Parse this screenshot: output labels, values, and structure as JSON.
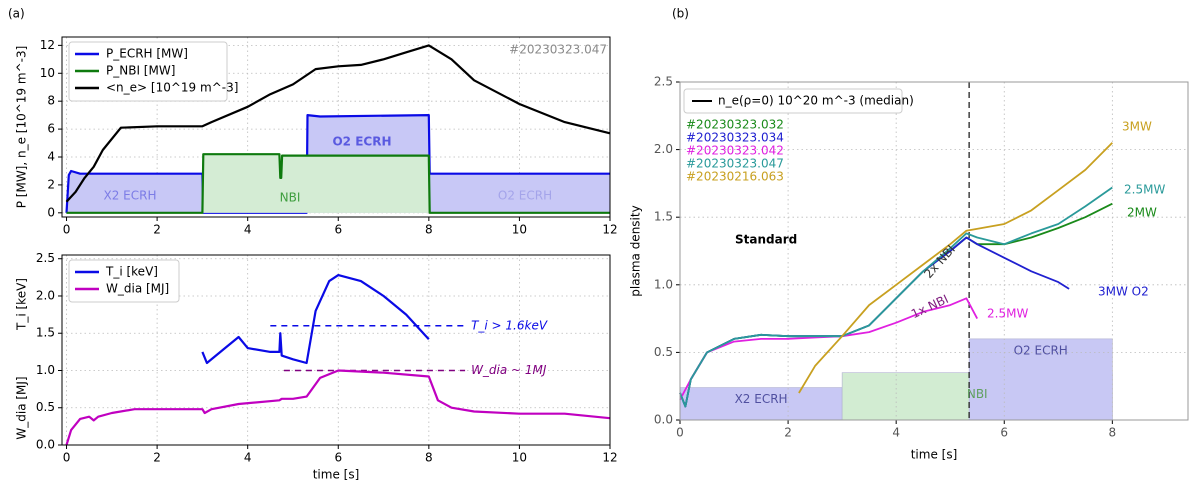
{
  "chart_data": [
    {
      "type": "line",
      "panel": "(a)",
      "ylabel": "P [MW],  n_e [10^19 m^-3]",
      "xlim": [
        -0.1,
        12
      ],
      "ylim": [
        -0.3,
        12.6
      ],
      "xticks": [
        0,
        2,
        4,
        6,
        8,
        10,
        12
      ],
      "yticks": [
        0,
        2,
        4,
        6,
        8,
        10,
        12
      ],
      "grid": true,
      "legend": "upper left",
      "series": [
        {
          "name": "P_ECRH [MW]",
          "color": "#0a0ae6",
          "fill": "#c8c8f6",
          "x": [
            0,
            0.05,
            0.1,
            0.3,
            3,
            3.02,
            5.3,
            5.32,
            5.6,
            8,
            8.02,
            12
          ],
          "values": [
            0,
            2.7,
            3,
            2.8,
            2.8,
            0,
            0,
            7,
            6.9,
            7,
            2.8,
            2.8
          ]
        },
        {
          "name": "P_NBI [MW]",
          "color": "#0e7a0e",
          "fill": "#d4ecd4",
          "x": [
            0,
            3,
            3.02,
            4.7,
            4.72,
            4.74,
            4.76,
            8,
            8.02,
            12
          ],
          "values": [
            0,
            0,
            4.2,
            4.2,
            2.5,
            2.5,
            4.1,
            4.1,
            0,
            0
          ]
        },
        {
          "name": "<n_e> [10^19 m^-3]",
          "color": "#000000",
          "x": [
            0,
            0.2,
            0.4,
            0.6,
            0.8,
            1.2,
            2,
            3,
            3.2,
            4,
            4.5,
            5,
            5.5,
            6,
            6.5,
            7,
            7.5,
            8,
            8.5,
            9,
            10,
            11,
            12
          ],
          "values": [
            0.8,
            1.5,
            2.5,
            3.3,
            4.5,
            6.1,
            6.2,
            6.2,
            6.5,
            7.6,
            8.5,
            9.2,
            10.3,
            10.5,
            10.6,
            11,
            11.5,
            12,
            11,
            9.5,
            7.8,
            6.5,
            5.7
          ]
        }
      ],
      "annotations": [
        {
          "text": "#20230323.047",
          "color": "#8a8a8a"
        },
        {
          "text": "X2 ECRH",
          "color": "#7c7ce6"
        },
        {
          "text": "NBI",
          "color": "#3e9e3e"
        },
        {
          "text": "O2 ECRH",
          "color": "#5a5ae0"
        },
        {
          "text": "O2 ECRH",
          "color": "#a4a4ea"
        }
      ]
    },
    {
      "type": "line",
      "xlabel": "time [s]",
      "ylabels": [
        "T_i [keV]",
        "W_dia [MJ]"
      ],
      "xlim": [
        -0.1,
        12
      ],
      "ylim": [
        0,
        2.55
      ],
      "xticks": [
        0,
        2,
        4,
        6,
        8,
        10,
        12
      ],
      "yticks": [
        {
          "value": 0,
          "label": "0.0"
        },
        0.5,
        {
          "value": 1,
          "label": "1.0"
        },
        1.5,
        {
          "value": 2,
          "label": "2.0"
        },
        2.5
      ],
      "grid": true,
      "legend": "upper left",
      "series": [
        {
          "name": "T_i [keV]",
          "color": "#0a0ae6",
          "x": [
            3,
            3.1,
            3.5,
            3.8,
            4,
            4.5,
            4.7,
            4.72,
            4.75,
            5,
            5.3,
            5.5,
            5.8,
            6,
            6.5,
            7,
            7.5,
            8
          ],
          "values": [
            1.25,
            1.1,
            1.3,
            1.45,
            1.3,
            1.25,
            1.25,
            1.5,
            1.2,
            1.15,
            1.1,
            1.8,
            2.2,
            2.28,
            2.2,
            2,
            1.75,
            1.42
          ]
        },
        {
          "name": "W_dia [MJ]",
          "color": "#c000c0",
          "x": [
            0,
            0.1,
            0.3,
            0.5,
            0.6,
            0.7,
            1,
            1.5,
            3,
            3.05,
            3.2,
            3.8,
            4.7,
            4.75,
            5,
            5.3,
            5.6,
            6,
            7,
            8,
            8.2,
            8.5,
            9,
            10,
            11,
            12
          ],
          "values": [
            0,
            0.2,
            0.35,
            0.38,
            0.33,
            0.38,
            0.43,
            0.48,
            0.48,
            0.43,
            0.48,
            0.55,
            0.6,
            0.62,
            0.62,
            0.65,
            0.9,
            1.0,
            0.97,
            0.92,
            0.6,
            0.5,
            0.45,
            0.42,
            0.42,
            0.36
          ]
        }
      ],
      "reference_lines": [
        {
          "value": 1.6,
          "xrange": [
            4.5,
            8.8
          ],
          "color": "#0a0ae6",
          "label": "T_i > 1.6keV"
        },
        {
          "value": 1.0,
          "xrange": [
            4.8,
            8.8
          ],
          "color": "#800080",
          "label": "W_dia ~ 1MJ"
        }
      ]
    },
    {
      "type": "line",
      "panel": "(b)",
      "xlabel": "time [s]",
      "ylabel": "plasma density",
      "xlim": [
        0,
        9.4
      ],
      "ylim": [
        0,
        2.5
      ],
      "xticks": [
        0,
        2,
        4,
        6,
        8
      ],
      "yticks": [
        {
          "value": 0,
          "label": "0.0"
        },
        0.5,
        {
          "value": 1,
          "label": "1.0"
        },
        1.5,
        {
          "value": 2,
          "label": "2.0"
        },
        2.5
      ],
      "grid": true,
      "legend": {
        "label": "n_e(ρ=0) 10^20 m^-3 (median)",
        "color": "#000000"
      },
      "vline": 5.35,
      "regions": [
        {
          "label": "X2 ECRH",
          "x": [
            0,
            3
          ],
          "height": 0.24,
          "color": "#c8c8f4"
        },
        {
          "label": "NBI",
          "x": [
            3,
            8
          ],
          "height": 0.35,
          "color": "#d2ecd2"
        },
        {
          "label": "O2 ECRH",
          "x": [
            5.35,
            8
          ],
          "height": 0.6,
          "color": "#c8c8f4"
        }
      ],
      "series": [
        {
          "name": "#20230323.032",
          "color": "#1a8a1a",
          "x": [
            0,
            0.1,
            0.2,
            0.5,
            1,
            1.5,
            2,
            2.5,
            3,
            3.5,
            4,
            4.5,
            5,
            5.3,
            5.5,
            6,
            6.5,
            7,
            7.5,
            8
          ],
          "values": [
            0.2,
            0.1,
            0.3,
            0.5,
            0.6,
            0.63,
            0.62,
            0.62,
            0.62,
            0.7,
            0.9,
            1.1,
            1.25,
            1.35,
            1.3,
            1.3,
            1.35,
            1.42,
            1.5,
            1.6
          ]
        },
        {
          "name": "#20230323.034",
          "color": "#2020d0",
          "x": [
            0,
            0.1,
            0.2,
            0.5,
            1,
            1.5,
            2,
            2.5,
            3,
            3.5,
            4,
            4.5,
            5,
            5.3,
            5.5,
            6,
            6.5,
            7,
            7.2
          ],
          "values": [
            0.2,
            0.1,
            0.3,
            0.5,
            0.6,
            0.63,
            0.62,
            0.62,
            0.62,
            0.7,
            0.9,
            1.1,
            1.25,
            1.35,
            1.3,
            1.2,
            1.1,
            1.02,
            0.97
          ]
        },
        {
          "name": "#20230323.042",
          "color": "#e020e0",
          "x": [
            0,
            0.2,
            0.5,
            1,
            1.5,
            2,
            2.5,
            3,
            3.5,
            4,
            4.5,
            5,
            5.3,
            5.5
          ],
          "values": [
            0.15,
            0.3,
            0.5,
            0.58,
            0.6,
            0.6,
            0.61,
            0.62,
            0.65,
            0.72,
            0.8,
            0.85,
            0.9,
            0.75
          ]
        },
        {
          "name": "#20230323.047",
          "color": "#2a9a9a",
          "x": [
            0,
            0.1,
            0.2,
            0.5,
            1,
            1.5,
            2,
            2.5,
            3,
            3.5,
            4,
            4.5,
            5,
            5.3,
            5.5,
            6,
            6.5,
            7,
            7.5,
            8
          ],
          "values": [
            0.2,
            0.1,
            0.3,
            0.5,
            0.6,
            0.63,
            0.62,
            0.62,
            0.62,
            0.7,
            0.9,
            1.1,
            1.27,
            1.38,
            1.35,
            1.3,
            1.38,
            1.45,
            1.58,
            1.72
          ]
        },
        {
          "name": "#20230216.063",
          "color": "#c8a020",
          "x": [
            2.2,
            2.5,
            3,
            3.5,
            4,
            4.5,
            5,
            5.3,
            6,
            6.5,
            7,
            7.5,
            8
          ],
          "values": [
            0.2,
            0.4,
            0.62,
            0.85,
            1.0,
            1.15,
            1.3,
            1.4,
            1.45,
            1.55,
            1.7,
            1.85,
            2.05
          ]
        }
      ],
      "annotations": [
        {
          "text": "Standard",
          "color": "#000000"
        },
        {
          "text": "3MW",
          "color": "#c8a020"
        },
        {
          "text": "2.5MW",
          "color": "#2a9a9a"
        },
        {
          "text": "2MW",
          "color": "#1a8a1a"
        },
        {
          "text": "3MW O2",
          "color": "#2020d0"
        },
        {
          "text": "2.5MW",
          "color": "#e020e0"
        },
        {
          "text": "2x NBI",
          "color": "#333333"
        },
        {
          "text": "1x NBI",
          "color": "#802080"
        }
      ]
    }
  ]
}
